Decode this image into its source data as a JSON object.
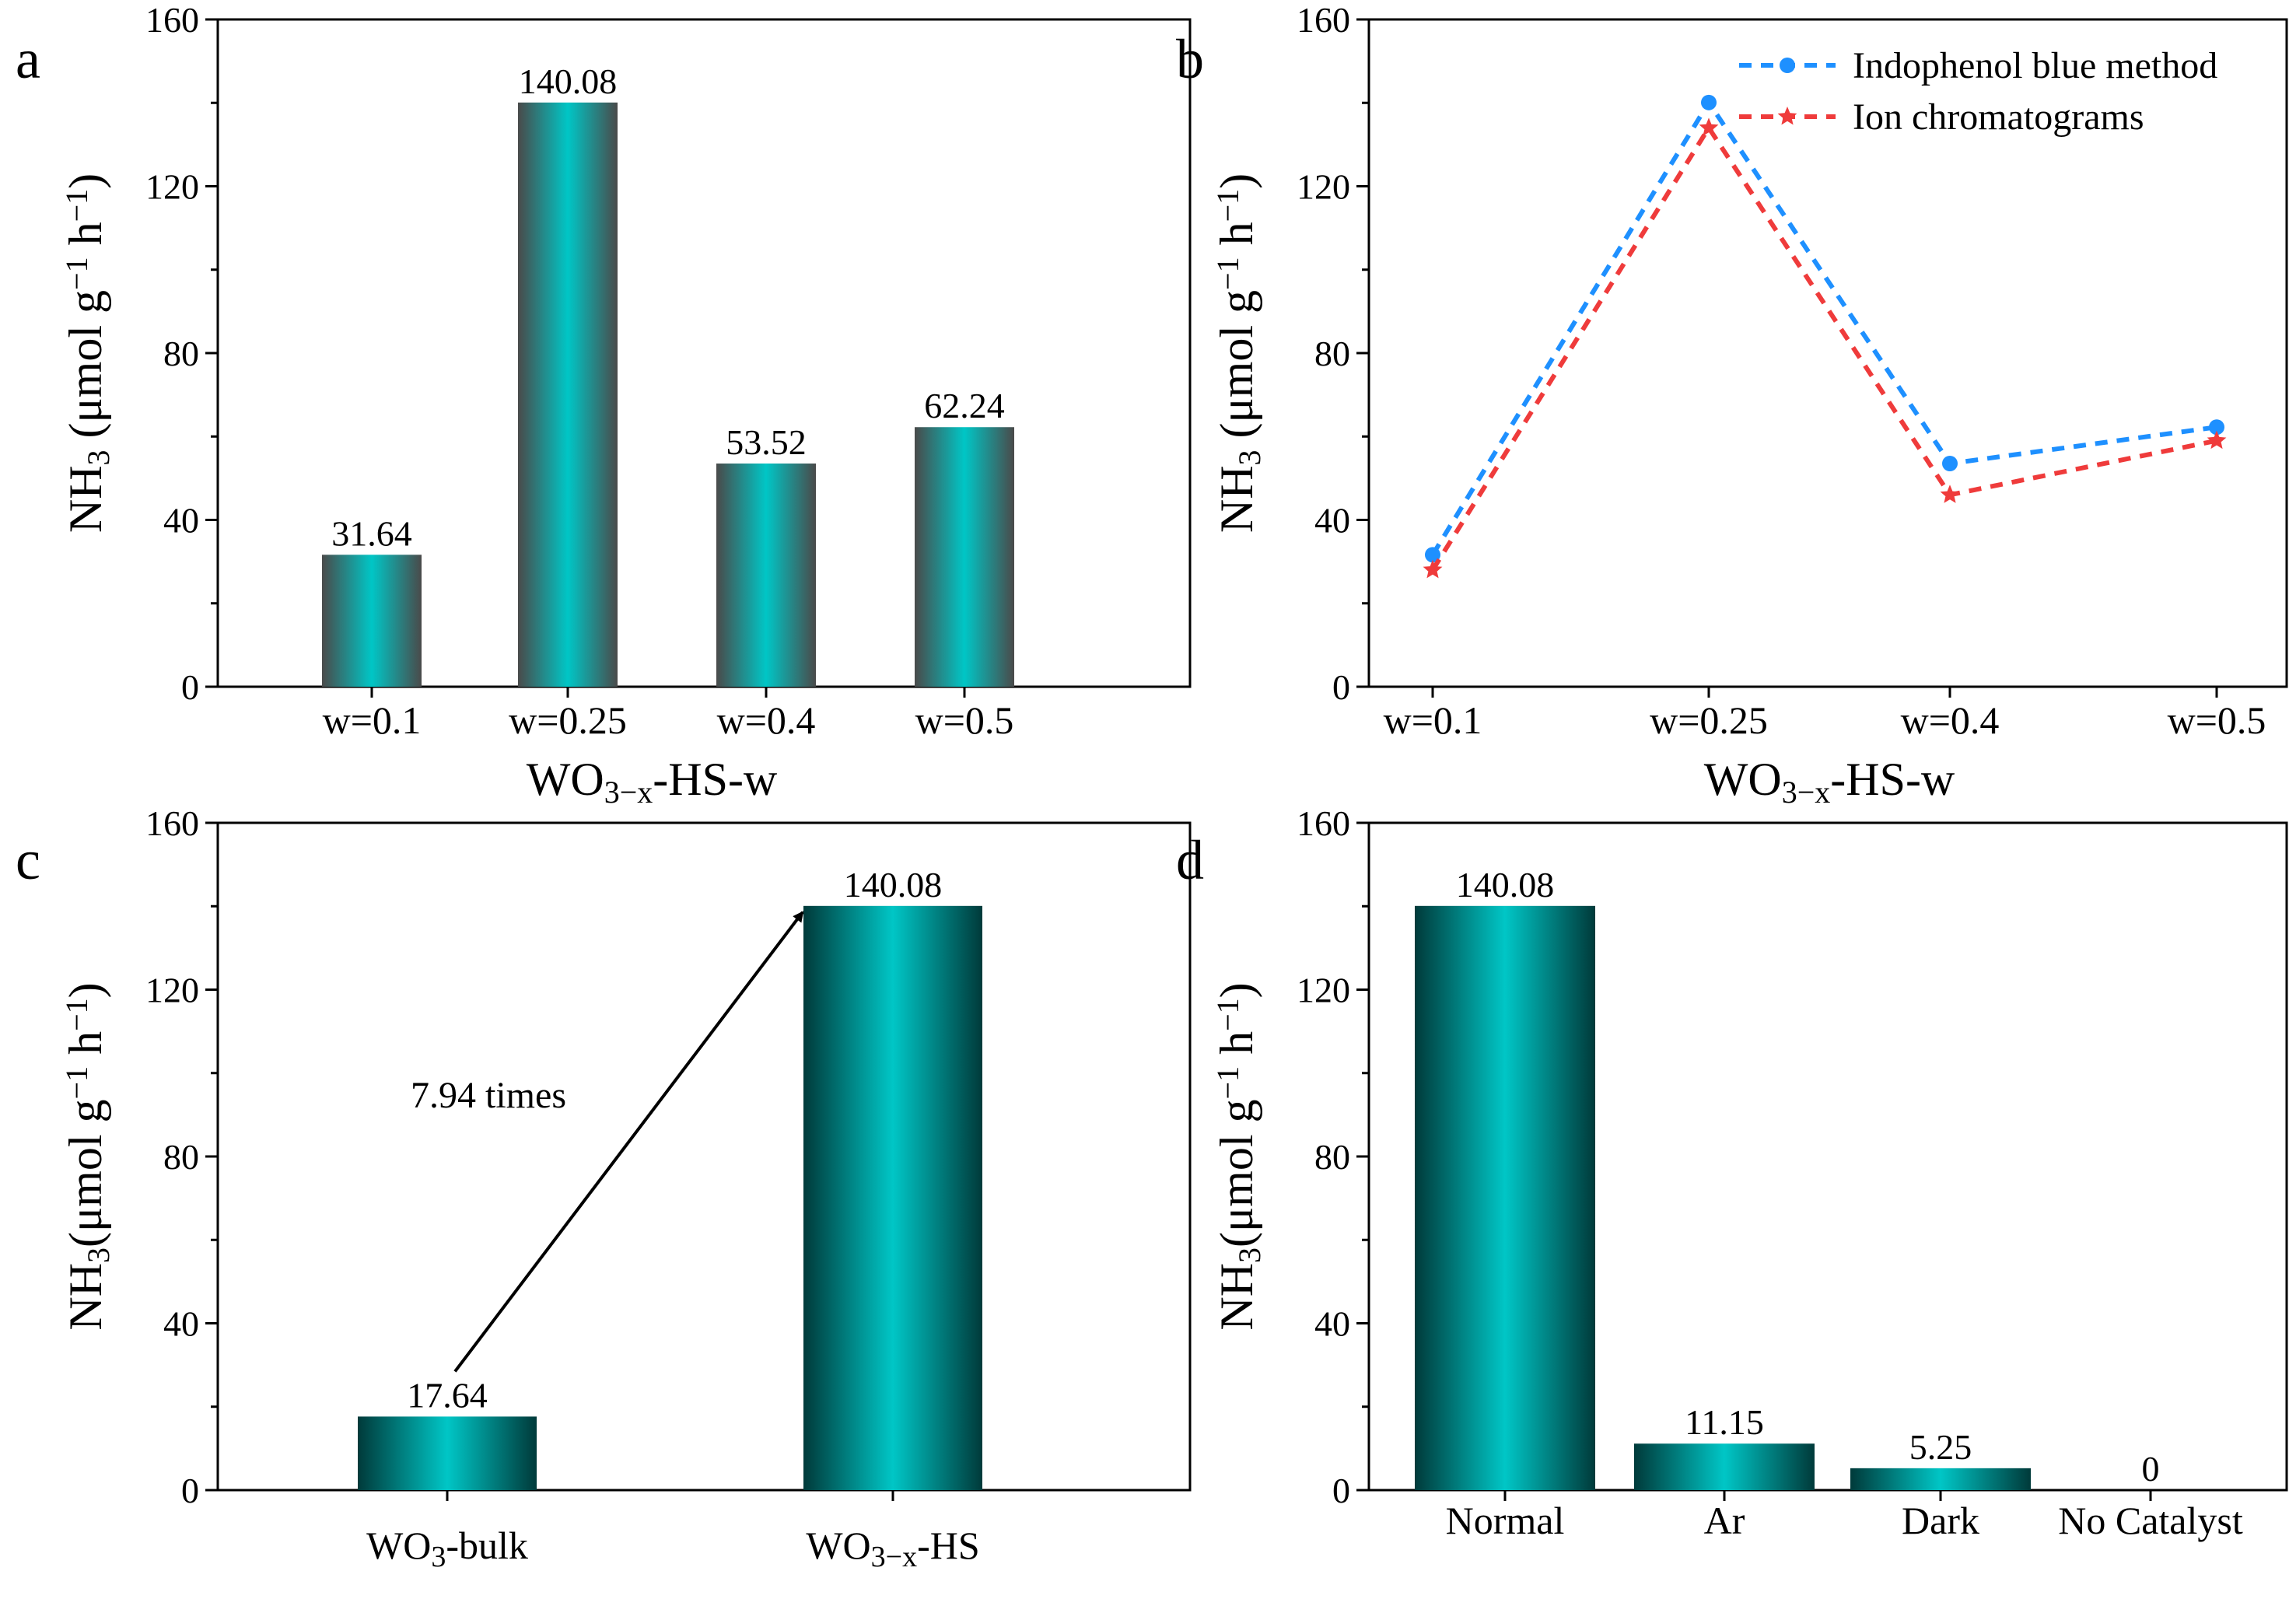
{
  "chart_data": [
    {
      "panel": "a",
      "type": "bar",
      "categories": [
        "w=0.1",
        "w=0.25",
        "w=0.4",
        "w=0.5"
      ],
      "values": [
        31.64,
        140.08,
        53.52,
        62.24
      ],
      "data_labels": [
        "31.64",
        "140.08",
        "53.52",
        "62.24"
      ],
      "ylabel_main": "NH",
      "ylabel_sub": "3",
      "ylabel_rest": " (μmol g",
      "ylabel_sup1": "−1",
      "ylabel_mid": " h",
      "ylabel_sup2": "−1",
      "ylabel_end": ")",
      "xlabel_main": "WO",
      "xlabel_sub": "3−x",
      "xlabel_rest": "-HS-w",
      "ylim": [
        0,
        160
      ],
      "yticks": [
        "0",
        "40",
        "80",
        "120",
        "160"
      ],
      "bar_colors": [
        "#4a4a4a",
        "#00c6c6"
      ]
    },
    {
      "panel": "b",
      "type": "line",
      "categories": [
        "w=0.1",
        "w=0.25",
        "w=0.4",
        "w=0.5"
      ],
      "series": [
        {
          "name": "Indophenol blue method",
          "values": [
            31.64,
            140.08,
            53.52,
            62.24
          ],
          "color": "#1e90ff",
          "marker": "circle"
        },
        {
          "name": "Ion chromatograms",
          "values": [
            28,
            134,
            46,
            59
          ],
          "color": "#ef3b3b",
          "marker": "star"
        }
      ],
      "ylabel_main": "NH",
      "ylabel_sub": "3",
      "ylabel_rest": " (μmol g",
      "ylabel_sup1": "−1",
      "ylabel_mid": " h",
      "ylabel_sup2": "−1",
      "ylabel_end": ")",
      "xlabel_main": "WO",
      "xlabel_sub": "3−x",
      "xlabel_rest": "-HS-w",
      "ylim": [
        0,
        160
      ],
      "yticks": [
        "0",
        "40",
        "80",
        "120",
        "160"
      ],
      "legend_position": "top-right"
    },
    {
      "panel": "c",
      "type": "bar",
      "categories": [
        "WO3-bulk",
        "WO3−x-HS"
      ],
      "category_parts": [
        {
          "main": "WO",
          "sub": "3",
          "rest": "-bulk"
        },
        {
          "main": "WO",
          "sub": "3−x",
          "rest": "-HS"
        }
      ],
      "values": [
        17.64,
        140.08
      ],
      "data_labels": [
        "17.64",
        "140.08"
      ],
      "annotation": "7.94 times",
      "ylabel_main": "NH",
      "ylabel_sub": "3",
      "ylabel_rest": "(μmol g",
      "ylabel_sup1": "−1",
      "ylabel_mid": " h",
      "ylabel_sup2": "−1",
      "ylabel_end": ")",
      "ylim": [
        0,
        160
      ],
      "yticks": [
        "0",
        "40",
        "80",
        "120",
        "160"
      ],
      "bar_colors": [
        "#003a3a",
        "#00c6c6"
      ]
    },
    {
      "panel": "d",
      "type": "bar",
      "categories": [
        "Normal",
        "Ar",
        "Dark",
        "No Catalyst"
      ],
      "values": [
        140.08,
        11.15,
        5.25,
        0
      ],
      "data_labels": [
        "140.08",
        "11.15",
        "5.25",
        "0"
      ],
      "ylabel_main": "NH",
      "ylabel_sub": "3",
      "ylabel_rest": "(μmol g",
      "ylabel_sup1": "−1",
      "ylabel_mid": " h",
      "ylabel_sup2": "−1",
      "ylabel_end": ")",
      "ylim": [
        0,
        160
      ],
      "yticks": [
        "0",
        "40",
        "80",
        "120",
        "160"
      ],
      "bar_colors": [
        "#003a3a",
        "#00c6c6"
      ]
    }
  ]
}
